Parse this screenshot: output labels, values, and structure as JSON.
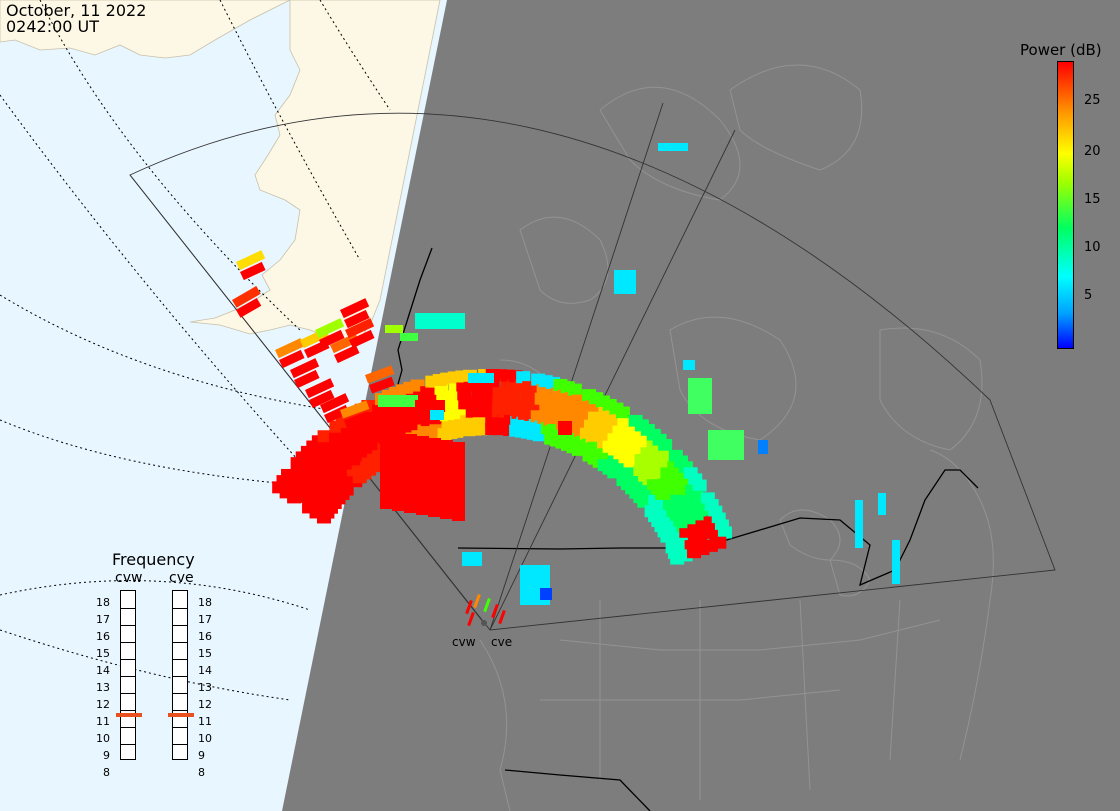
{
  "header": {
    "date": "October, 11 2022",
    "time": "0242:00 UT"
  },
  "colorbar": {
    "title": "Power (dB)",
    "ticks": [
      "25",
      "20",
      "15",
      "10",
      "5"
    ],
    "colors": {
      "low": "#0000ff",
      "mid": "#00ff60",
      "high": "#ff0000"
    }
  },
  "frequency": {
    "title": "Frequency",
    "radars": [
      {
        "name": "cvw",
        "selected": "11"
      },
      {
        "name": "cve",
        "selected": "11"
      }
    ],
    "left_labels": [
      "18",
      "17",
      "16",
      "15",
      "14",
      "13",
      "12",
      "11",
      "10",
      "9",
      "8"
    ],
    "right_labels": [
      "18",
      "17",
      "16",
      "15",
      "14",
      "13",
      "12",
      "11",
      "10",
      "9",
      "8"
    ],
    "marker_color": "#e85020"
  },
  "sites": [
    {
      "label": "cvw"
    },
    {
      "label": "cve"
    }
  ],
  "map_colors": {
    "ocean": "#e8f6ff",
    "land_day": "#fdf8e6",
    "night": "#7d7d7d"
  }
}
